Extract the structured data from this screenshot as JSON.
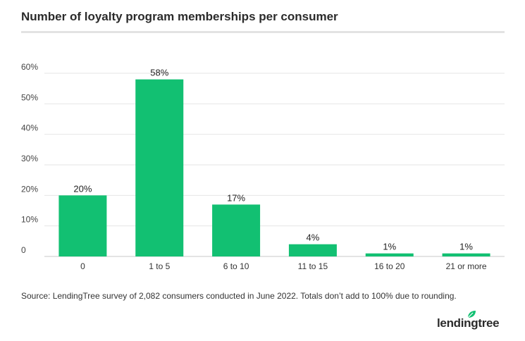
{
  "header": {
    "title": "Number of loyalty program memberships per consumer"
  },
  "footer": {
    "source": "Source: LendingTree survey of 2,082 consumers conducted in June 2022. Totals don’t add to 100% due to rounding.",
    "logo_text": "lendingtree"
  },
  "colors": {
    "bar": "#12c072",
    "grid": "#e6e6e6",
    "baseline": "#c8c8c8",
    "logo_leaf": "#12c072"
  },
  "chart_data": {
    "type": "bar",
    "title": "Number of loyalty program memberships per consumer",
    "xlabel": "",
    "ylabel": "",
    "categories": [
      "0",
      "1 to 5",
      "6 to 10",
      "11 to 15",
      "16 to 20",
      "21 or more"
    ],
    "values": [
      20,
      58,
      17,
      4,
      1,
      1
    ],
    "data_labels": [
      "20%",
      "58%",
      "17%",
      "4%",
      "1%",
      "1%"
    ],
    "ylim": [
      0,
      60
    ],
    "yticks": [
      0,
      10,
      20,
      30,
      40,
      50,
      60
    ],
    "ytick_labels": [
      "0",
      "10%",
      "20%",
      "30%",
      "40%",
      "50%",
      "60%"
    ],
    "grid": true,
    "legend": "none"
  }
}
